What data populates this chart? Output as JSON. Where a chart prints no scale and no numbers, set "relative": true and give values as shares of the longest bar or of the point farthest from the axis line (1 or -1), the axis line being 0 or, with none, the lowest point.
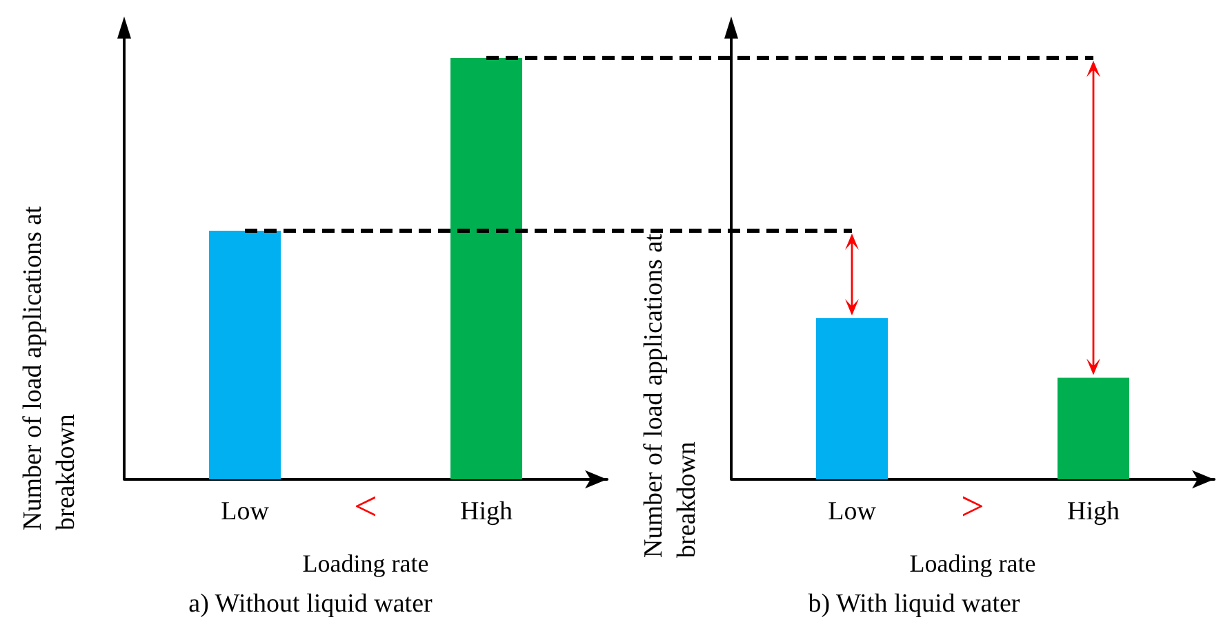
{
  "chart_data": [
    {
      "type": "bar",
      "title": "a) Without liquid water",
      "xlabel": "Loading rate",
      "ylabel": "Number of load applications at breakdown",
      "categories": [
        "Low",
        "High"
      ],
      "values": [
        0.59,
        1
      ],
      "colors": [
        "#00b0f0",
        "#00b050"
      ],
      "relative": true,
      "annotations": [
        "<"
      ]
    },
    {
      "type": "bar",
      "title": "b) With liquid water",
      "xlabel": "Loading rate",
      "ylabel": "Number of load applications at breakdown",
      "categories": [
        "Low",
        "High"
      ],
      "values": [
        1,
        0.63
      ],
      "colors": [
        "#00b0f0",
        "#00b050"
      ],
      "relative": true,
      "annotations": [
        ">"
      ]
    }
  ]
}
